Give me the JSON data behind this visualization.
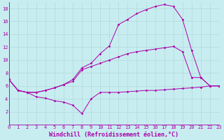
{
  "background_color": "#c8edf0",
  "line_color": "#aa00aa",
  "grid_color": "#aacccc",
  "xlabel": "Windchill (Refroidissement éolien,°C)",
  "xlim": [
    0,
    23
  ],
  "ylim": [
    0,
    19
  ],
  "xticks": [
    0,
    1,
    2,
    3,
    4,
    5,
    6,
    7,
    8,
    9,
    10,
    11,
    12,
    13,
    14,
    15,
    16,
    17,
    18,
    19,
    20,
    21,
    22,
    23
  ],
  "yticks": [
    2,
    4,
    6,
    8,
    10,
    12,
    14,
    16,
    18
  ],
  "line_top_x": [
    0,
    1,
    2,
    3,
    4,
    5,
    6,
    7,
    8,
    9,
    10,
    11,
    12,
    13,
    14,
    15,
    16,
    17,
    18,
    19,
    20,
    21,
    22,
    23
  ],
  "line_top_y": [
    7.0,
    5.3,
    5.0,
    5.0,
    5.3,
    5.7,
    6.2,
    7.0,
    8.8,
    9.5,
    11.0,
    12.2,
    15.5,
    16.3,
    17.2,
    17.8,
    18.3,
    18.6,
    18.3,
    16.3,
    11.5,
    7.3,
    6.0,
    6.0
  ],
  "line_mid_x": [
    0,
    1,
    2,
    3,
    4,
    5,
    6,
    7,
    8,
    9,
    10,
    11,
    12,
    13,
    14,
    15,
    16,
    17,
    18,
    19,
    20,
    21,
    22,
    23
  ],
  "line_mid_y": [
    7.0,
    5.3,
    5.0,
    5.0,
    5.3,
    5.7,
    6.2,
    6.7,
    8.5,
    9.0,
    9.5,
    10.0,
    10.5,
    11.0,
    11.3,
    11.5,
    11.7,
    11.9,
    12.1,
    11.3,
    7.3,
    7.3,
    6.0,
    6.0
  ],
  "line_bot_x": [
    0,
    1,
    2,
    3,
    4,
    5,
    6,
    7,
    8,
    9,
    10,
    11,
    12,
    13,
    14,
    15,
    16,
    17,
    18,
    19,
    20,
    21,
    22,
    23
  ],
  "line_bot_y": [
    7.0,
    5.3,
    5.0,
    4.3,
    4.1,
    3.7,
    3.5,
    3.0,
    1.7,
    4.0,
    5.0,
    5.0,
    5.0,
    5.1,
    5.2,
    5.3,
    5.3,
    5.4,
    5.5,
    5.6,
    5.7,
    5.8,
    6.0,
    6.0
  ],
  "tick_fontsize": 5,
  "xlabel_fontsize": 6
}
